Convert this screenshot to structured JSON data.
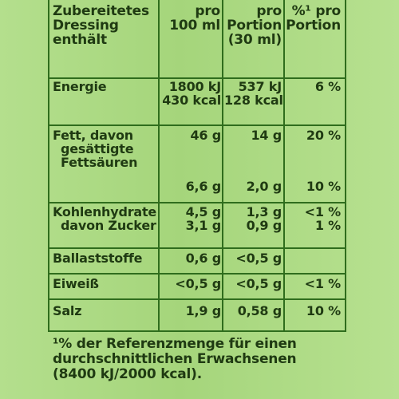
{
  "table": {
    "headers": [
      [
        "Zubereitetes",
        "Dressing",
        "enthält"
      ],
      [
        "pro",
        "100 ml"
      ],
      [
        "pro",
        "Portion",
        "(30 ml)"
      ],
      [
        "%¹ pro",
        "Portion"
      ]
    ],
    "rows": [
      {
        "label_lines": [
          "Energie"
        ],
        "values_100ml": [
          "1800 kJ",
          "430 kcal"
        ],
        "values_portion": [
          "537 kJ",
          "128 kcal"
        ],
        "percent_portion": "6 %"
      },
      {
        "label_lines": [
          "Fett, davon",
          "gesättigte",
          "Fettsäuren"
        ],
        "values_100ml": [
          "46 g",
          "6,6 g"
        ],
        "values_portion": [
          "14 g",
          "2,0 g"
        ],
        "percent_portion": [
          "20 %",
          "10 %"
        ]
      },
      {
        "label_lines": [
          "Kohlenhydrate",
          "davon Zucker"
        ],
        "values_100ml": [
          "4,5 g",
          "3,1 g"
        ],
        "values_portion": [
          "1,3 g",
          "0,9 g"
        ],
        "percent_portion": [
          "<1 %",
          "1 %"
        ]
      },
      {
        "label_lines": [
          "Ballaststoffe"
        ],
        "values_100ml": [
          "0,6 g"
        ],
        "values_portion": [
          "<0,5 g"
        ],
        "percent_portion": ""
      },
      {
        "label_lines": [
          "Eiweiß"
        ],
        "values_100ml": [
          "<0,5 g"
        ],
        "values_portion": [
          "<0,5 g"
        ],
        "percent_portion": "<1 %"
      },
      {
        "label_lines": [
          "Salz"
        ],
        "values_100ml": [
          "1,9 g"
        ],
        "values_portion": [
          "0,58 g"
        ],
        "percent_portion": "10 %"
      }
    ]
  },
  "footnote": [
    "¹% der Referenzmenge für einen",
    "durchschnittlichen Erwachsenen",
    "(8400 kJ/2000 kcal)."
  ]
}
